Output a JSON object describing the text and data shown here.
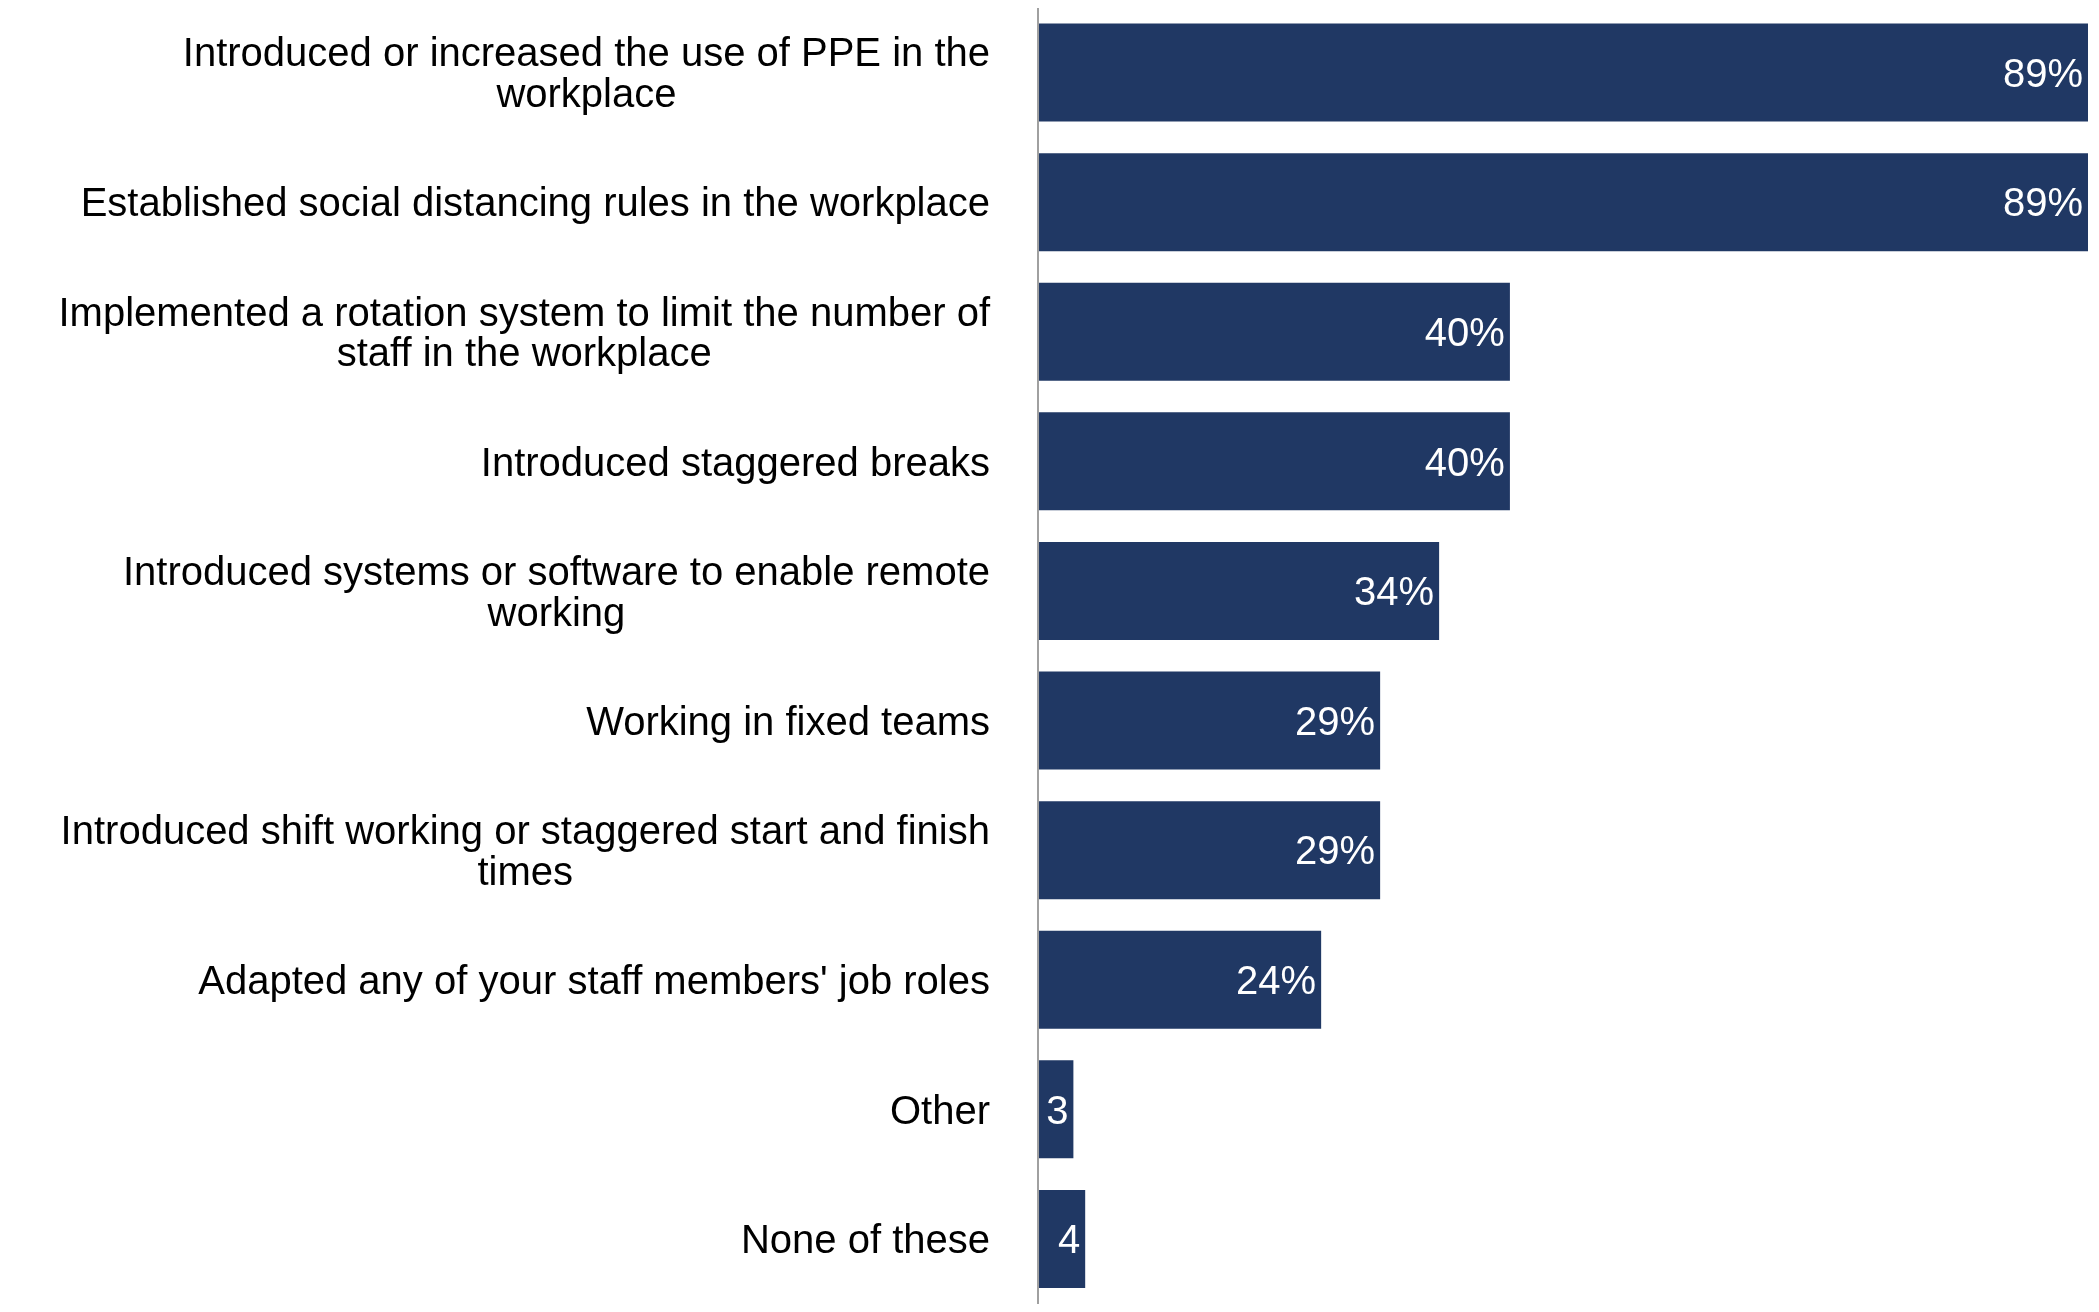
{
  "chart_data": {
    "type": "bar",
    "orientation": "horizontal",
    "categories": [
      "Introduced or increased the use of PPE in the workplace",
      "Established social distancing rules in the workplace",
      "Implemented a rotation system to limit the number of staff in the workplace",
      "Introduced staggered breaks",
      "Introduced systems or software to enable remote working",
      "Working in fixed teams",
      "Introduced shift working or staggered start and finish times",
      "Adapted any of your staff members' job roles",
      "Other",
      "None of these"
    ],
    "values": [
      89,
      89,
      40,
      40,
      34,
      29,
      29,
      24,
      3,
      4
    ],
    "value_labels": [
      "89%",
      "89%",
      "40%",
      "40%",
      "34%",
      "29%",
      "29%",
      "24%",
      "3",
      "4"
    ],
    "color": "#203864",
    "grid": false,
    "legend": false
  }
}
